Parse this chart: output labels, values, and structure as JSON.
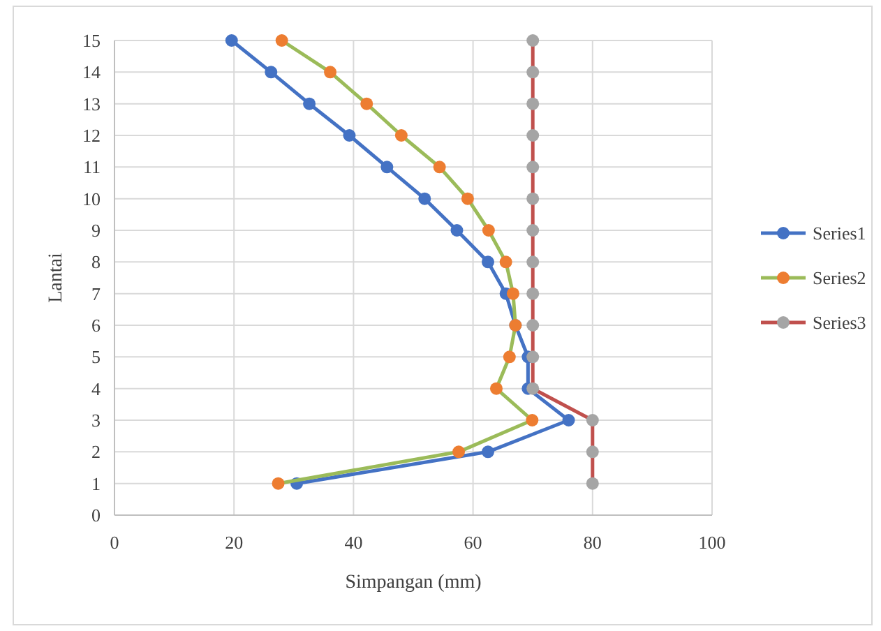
{
  "chart_data": {
    "type": "line",
    "xlabel": "Simpangan (mm)",
    "ylabel": "Lantai",
    "xlim": [
      0,
      100
    ],
    "xticks": [
      0,
      20,
      40,
      60,
      80,
      100
    ],
    "ylim": [
      0,
      15
    ],
    "yticks": [
      0,
      1,
      2,
      3,
      4,
      5,
      6,
      7,
      8,
      9,
      10,
      11,
      12,
      13,
      14,
      15
    ],
    "grid": true,
    "legend": "right",
    "marker": "circle",
    "series": [
      {
        "name": "Series1",
        "color": "#4472c4",
        "colors": [
          "#4472c4",
          "#4472c4",
          "#4472c4",
          "#4472c4",
          "#4472c4",
          "#4472c4",
          "#4472c4",
          "#4472c4",
          "#4472c4",
          "#4472c4",
          "#4472c4",
          "#4472c4",
          "#4472c4",
          "#4472c4",
          "#4472c4"
        ],
        "x": [
          30.5,
          62.5,
          76,
          69.2,
          69.2,
          67.1,
          65.5,
          62.5,
          57.3,
          51.9,
          45.6,
          39.3,
          32.6,
          26.2,
          19.6
        ],
        "values": [
          1,
          2,
          3,
          4,
          5,
          6,
          7,
          8,
          9,
          10,
          11,
          12,
          13,
          14,
          15
        ]
      },
      {
        "name": "Series2",
        "color": "#9bbb59",
        "colors": [
          "#ed7d31",
          "#ed7d31",
          "#ed7d31",
          "#ed7d31",
          "#ed7d31",
          "#ed7d31",
          "#ed7d31",
          "#ed7d31",
          "#ed7d31",
          "#ed7d31",
          "#ed7d31",
          "#ed7d31",
          "#ed7d31",
          "#ed7d31",
          "#ed7d31"
        ],
        "x": [
          27.4,
          57.6,
          69.9,
          63.9,
          66.1,
          67.1,
          66.7,
          65.5,
          62.6,
          59.1,
          54.4,
          48,
          42.2,
          36.1,
          28
        ],
        "values": [
          1,
          2,
          3,
          4,
          5,
          6,
          7,
          8,
          9,
          10,
          11,
          12,
          13,
          14,
          15
        ]
      },
      {
        "name": "Series3",
        "color": "#c0504d",
        "colors": [
          "#a5a5a5",
          "#a5a5a5",
          "#a5a5a5",
          "#a5a5a5",
          "#a5a5a5",
          "#a5a5a5",
          "#a5a5a5",
          "#a5a5a5",
          "#a5a5a5",
          "#a5a5a5",
          "#a5a5a5",
          "#a5a5a5",
          "#a5a5a5",
          "#a5a5a5",
          "#a5a5a5"
        ],
        "x": [
          80,
          80,
          80,
          70,
          70,
          70,
          70,
          70,
          70,
          70,
          70,
          70,
          70,
          70,
          70
        ],
        "values": [
          1,
          2,
          3,
          4,
          5,
          6,
          7,
          8,
          9,
          10,
          11,
          12,
          13,
          14,
          15
        ]
      }
    ]
  }
}
